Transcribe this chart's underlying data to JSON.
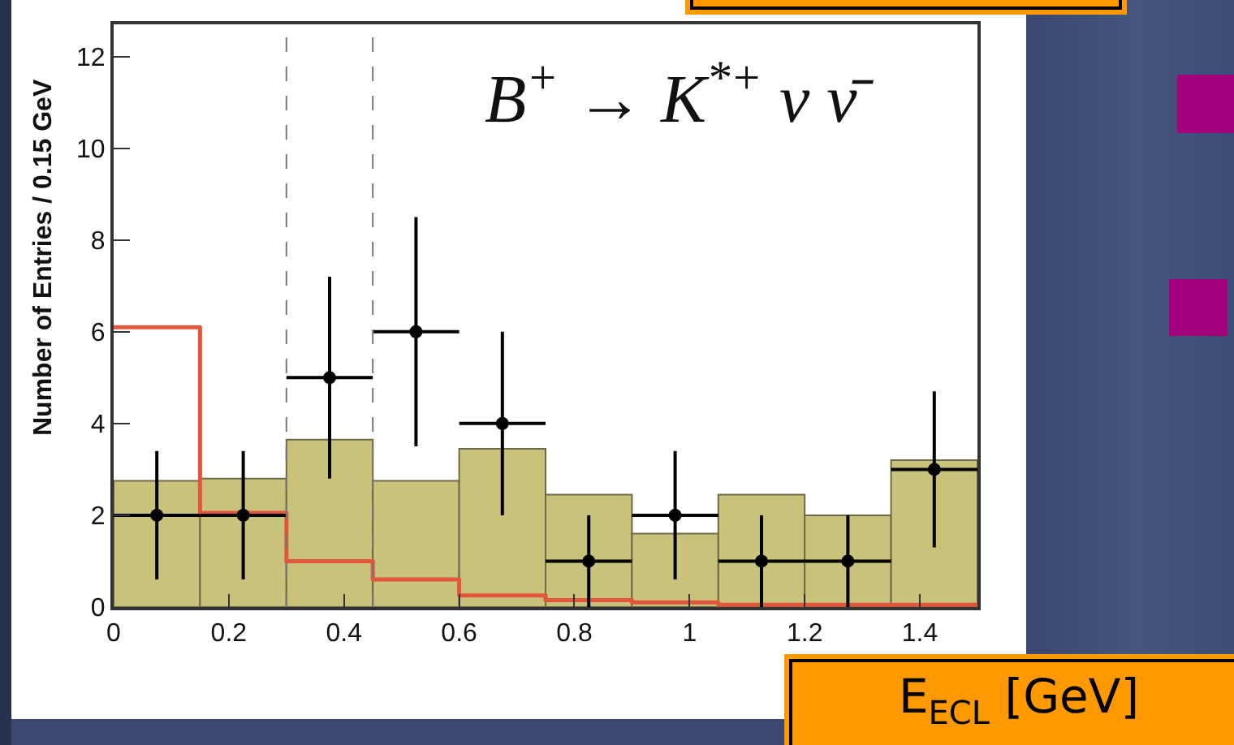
{
  "chart_data": {
    "type": "histogram",
    "title": "B$^{+}$ → K$^{*+}$ ν ν̄",
    "xlabel": "E$_{ECL}$ [GeV]",
    "ylabel": "Number of Entries / 0.15 GeV",
    "bins": [
      0,
      0.15,
      0.3,
      0.45,
      0.6,
      0.75,
      0.9,
      1.05,
      1.2,
      1.35,
      1.5
    ],
    "series": [
      {
        "color": "#c9c27b",
        "values": [
          2.75,
          2.8,
          3.65,
          2.75,
          3.45,
          2.45,
          1.6,
          2.45,
          2.0,
          3.2
        ]
      },
      {
        "type": "step",
        "color": "#e2573b",
        "x": [
          0,
          0.15,
          0.3,
          0.45,
          0.6,
          0.75,
          0.9,
          1.05,
          1.2,
          1.35,
          1.5
        ],
        "values": [
          6.1,
          2.05,
          1.0,
          0.6,
          0.25,
          0.15,
          0.1,
          0.05,
          0.05,
          0.05,
          0.05
        ]
      },
      {
        "type": "scatter",
        "color": "#000000",
        "marker": "circle",
        "x": [
          0.075,
          0.225,
          0.375,
          0.525,
          0.675,
          0.825,
          0.975,
          1.125,
          1.275,
          1.425
        ],
        "values": [
          2,
          2,
          5,
          6,
          4,
          1,
          2,
          1,
          1,
          3
        ],
        "errors": [
          1.4,
          1.4,
          2.2,
          2.5,
          2,
          1,
          1.4,
          1,
          1,
          1.7
        ],
        "xerrors": [
          0.075,
          0.075,
          0.075,
          0.075,
          0.075,
          0.075,
          0.075,
          0.075,
          0.075,
          0.075
        ]
      }
    ],
    "ref_lines": [
      {
        "axis": "x",
        "value": 0.3,
        "color": "#777777",
        "line_style": "dashed"
      },
      {
        "axis": "x",
        "value": 0.45,
        "color": "#777777",
        "line_style": "dashed"
      }
    ],
    "xlim": [
      0,
      1.5
    ],
    "ylim": [
      0,
      12.7
    ],
    "xticks": [
      0,
      0.2,
      0.4,
      0.6,
      0.8,
      1,
      1.2,
      1.4
    ],
    "yticks": [
      0,
      2,
      4,
      6,
      8,
      10,
      12
    ],
    "grid": false
  }
}
